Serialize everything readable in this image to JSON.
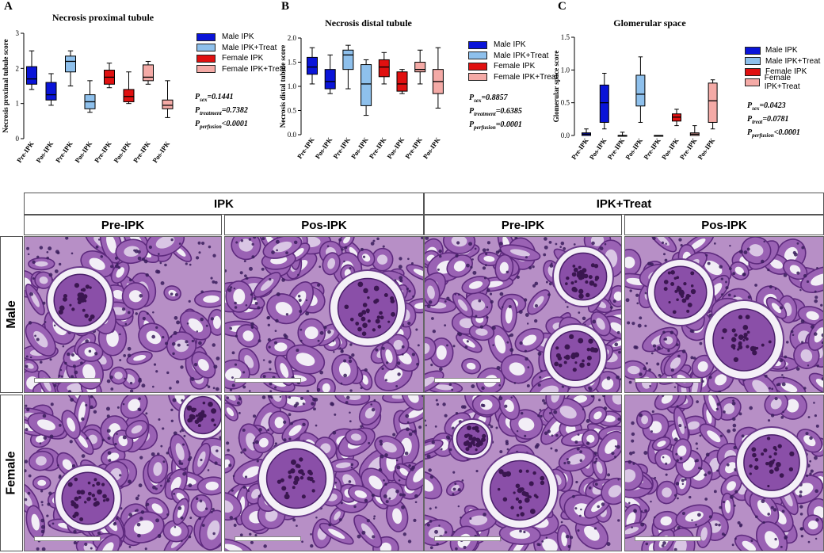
{
  "figure": {
    "panels": [
      {
        "letter": "A",
        "title": "Necrosis proximal tubule",
        "stats": [
          {
            "sym": "P",
            "sub": "sex",
            "val": "=0.1441"
          },
          {
            "sym": "P",
            "sub": "treatment",
            "val": "=0.7382"
          },
          {
            "sym": "P",
            "sub": "perfusion",
            "val": "<0.0001"
          }
        ]
      },
      {
        "letter": "B",
        "title": "Necrosis distal tubule",
        "stats": [
          {
            "sym": "P",
            "sub": "sex",
            "val": "=0.8857"
          },
          {
            "sym": "P",
            "sub": "treatment",
            "val": "=0.6385"
          },
          {
            "sym": "P",
            "sub": "perfusion",
            "val": "=0.0001"
          }
        ]
      },
      {
        "letter": "C",
        "title": "Glomerular space",
        "stats": [
          {
            "sym": "P",
            "sub": "sex",
            "val": "=0.0423"
          },
          {
            "sym": "P",
            "sub": "treat",
            "val": "=0.0781"
          },
          {
            "sym": "P",
            "sub": "perfusion",
            "val": "<0.0001"
          }
        ]
      }
    ],
    "legend": [
      {
        "label": "Male IPK",
        "color": "#0a14d8"
      },
      {
        "label": "Male IPK+Treat",
        "color": "#8ec0ec"
      },
      {
        "label": "Female IPK",
        "color": "#e01010"
      },
      {
        "label": "Female IPK+Treat",
        "color": "#f4aaa6"
      }
    ],
    "histology": {
      "groups": [
        "IPK",
        "IPK+Treat"
      ],
      "columns": [
        "Pre-IPK",
        "Pos-IPK",
        "Pre-IPK",
        "Pos-IPK"
      ],
      "rows": [
        "Male",
        "Female"
      ],
      "stain_color": "#7a3f94"
    }
  },
  "chart_data": [
    {
      "type": "box",
      "title": "Necrosis proximal tubule",
      "ylabel": "Necrosis proximal tubule score",
      "ylim": [
        0,
        3
      ],
      "yticks": [
        0,
        1,
        2,
        3
      ],
      "categories": [
        "Pre-IPK",
        "Pos-IPK",
        "Pre-IPK",
        "Pos-IPK",
        "Pre-IPK",
        "Pos-IPK",
        "Pre-IPK",
        "Pos-IPK"
      ],
      "series_index": [
        0,
        0,
        1,
        1,
        2,
        2,
        3,
        3
      ],
      "boxes": [
        {
          "min": 1.4,
          "q1": 1.55,
          "median": 1.7,
          "q3": 2.05,
          "max": 2.5
        },
        {
          "min": 0.95,
          "q1": 1.1,
          "median": 1.25,
          "q3": 1.6,
          "max": 1.85
        },
        {
          "min": 1.5,
          "q1": 1.9,
          "median": 2.2,
          "q3": 2.35,
          "max": 2.5
        },
        {
          "min": 0.75,
          "q1": 0.85,
          "median": 1.05,
          "q3": 1.25,
          "max": 1.65
        },
        {
          "min": 1.45,
          "q1": 1.55,
          "median": 1.75,
          "q3": 1.95,
          "max": 2.15
        },
        {
          "min": 1.0,
          "q1": 1.05,
          "median": 1.2,
          "q3": 1.4,
          "max": 1.9
        },
        {
          "min": 1.55,
          "q1": 1.65,
          "median": 1.75,
          "q3": 2.1,
          "max": 2.2
        },
        {
          "min": 0.6,
          "q1": 0.85,
          "median": 0.95,
          "q3": 1.1,
          "max": 1.65
        }
      ]
    },
    {
      "type": "box",
      "title": "Necrosis distal tubule",
      "ylabel": "Necrosis distal tubule score",
      "ylim": [
        0,
        2.0
      ],
      "yticks": [
        0.0,
        0.5,
        1.0,
        1.5,
        2.0
      ],
      "categories": [
        "Pre-IPK",
        "Pos-IPK",
        "Pre-IPK",
        "Pos-IPK",
        "Pre-IPK",
        "Pos-IPK",
        "Pre-IPK",
        "Pos-IPK"
      ],
      "series_index": [
        0,
        0,
        1,
        1,
        2,
        2,
        3,
        3
      ],
      "boxes": [
        {
          "min": 1.05,
          "q1": 1.25,
          "median": 1.4,
          "q3": 1.6,
          "max": 1.8
        },
        {
          "min": 0.85,
          "q1": 0.95,
          "median": 1.1,
          "q3": 1.35,
          "max": 1.65
        },
        {
          "min": 0.95,
          "q1": 1.35,
          "median": 1.65,
          "q3": 1.75,
          "max": 1.85
        },
        {
          "min": 0.4,
          "q1": 0.6,
          "median": 1.05,
          "q3": 1.45,
          "max": 1.55
        },
        {
          "min": 1.05,
          "q1": 1.2,
          "median": 1.4,
          "q3": 1.55,
          "max": 1.7
        },
        {
          "min": 0.85,
          "q1": 0.9,
          "median": 1.05,
          "q3": 1.3,
          "max": 1.35
        },
        {
          "min": 1.05,
          "q1": 1.3,
          "median": 1.35,
          "q3": 1.5,
          "max": 1.75
        },
        {
          "min": 0.55,
          "q1": 0.85,
          "median": 1.1,
          "q3": 1.35,
          "max": 1.8
        }
      ]
    },
    {
      "type": "box",
      "title": "Glomerular space",
      "ylabel": "Glomerular space score",
      "ylim": [
        0,
        1.5
      ],
      "yticks": [
        0.0,
        0.5,
        1.0,
        1.5
      ],
      "categories": [
        "Pre-IPK",
        "Pos-IPK",
        "Pre-IPK",
        "Pos-IPK",
        "Pre-IPK",
        "Pos-IPK",
        "Pre-IPK",
        "Pos-IPK"
      ],
      "series_index": [
        0,
        0,
        1,
        1,
        2,
        2,
        3,
        3
      ],
      "boxes": [
        {
          "min": 0.0,
          "q1": 0.0,
          "median": 0.02,
          "q3": 0.04,
          "max": 0.1
        },
        {
          "min": 0.1,
          "q1": 0.2,
          "median": 0.5,
          "q3": 0.77,
          "max": 0.95
        },
        {
          "min": 0.0,
          "q1": 0.0,
          "median": 0.0,
          "q3": 0.0,
          "max": 0.05
        },
        {
          "min": 0.2,
          "q1": 0.45,
          "median": 0.63,
          "q3": 0.92,
          "max": 1.2
        },
        {
          "min": 0.0,
          "q1": 0.0,
          "median": 0.0,
          "q3": 0.0,
          "max": 0.0
        },
        {
          "min": 0.15,
          "q1": 0.22,
          "median": 0.28,
          "q3": 0.33,
          "max": 0.4
        },
        {
          "min": 0.0,
          "q1": 0.0,
          "median": 0.02,
          "q3": 0.04,
          "max": 0.15
        },
        {
          "min": 0.1,
          "q1": 0.2,
          "median": 0.53,
          "q3": 0.8,
          "max": 0.85
        }
      ]
    }
  ]
}
